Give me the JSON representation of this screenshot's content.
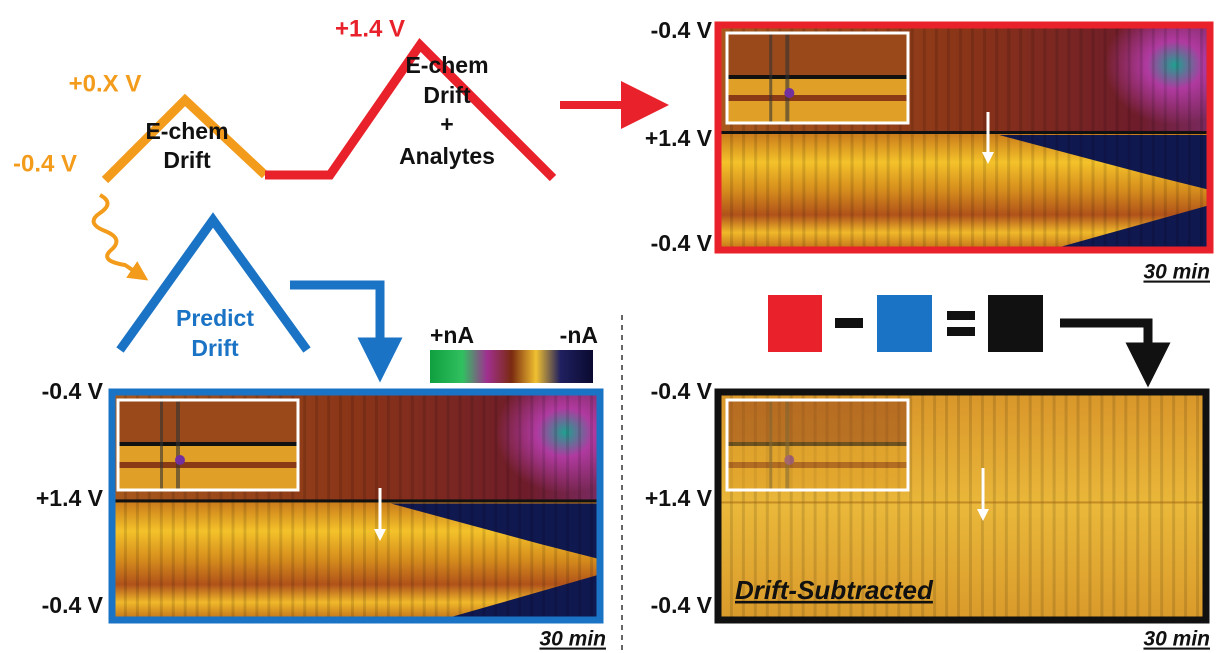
{
  "waveform": {
    "peak_high_label": "+1.4 V",
    "peak_low_label": "+0.X V",
    "start_label": "-0.4 V",
    "drift_label": [
      "E-chem",
      "Drift"
    ],
    "analyte_label": [
      "E-chem",
      "Drift",
      "+",
      "Analytes"
    ],
    "predict_label": [
      "Predict",
      "Drift"
    ]
  },
  "colorbar": {
    "positive_label": "+nA",
    "negative_label": "-nA"
  },
  "panels": {
    "measured": {
      "y_labels": [
        "-0.4 V",
        "+1.4 V",
        "-0.4 V"
      ],
      "time_label": "30 min"
    },
    "predicted": {
      "y_labels": [
        "-0.4 V",
        "+1.4 V",
        "-0.4 V"
      ],
      "time_label": "30 min"
    },
    "subtracted": {
      "y_labels": [
        "-0.4 V",
        "+1.4 V",
        "-0.4 V"
      ],
      "time_label": "30 min",
      "title": "Drift-Subtracted"
    }
  }
}
